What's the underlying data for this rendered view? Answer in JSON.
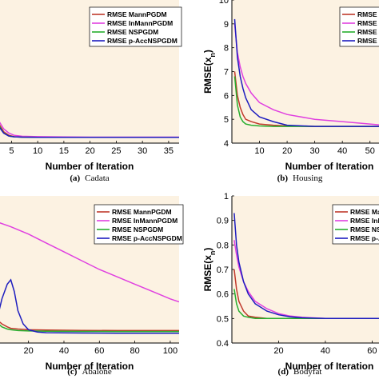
{
  "chart_data": [
    {
      "id": "cadata",
      "type": "line",
      "caption_tag": "(a)",
      "caption_name": "Cadata",
      "xlabel": "Number of Iteration",
      "ylabel": "",
      "xlim": [
        2.5,
        37
      ],
      "ylim": [
        0,
        1
      ],
      "xticks": [
        5,
        10,
        15,
        20,
        25,
        30,
        35
      ],
      "yticks": [],
      "legend_position": "top-right",
      "series": [
        {
          "name": "RMSE MannPGDM",
          "color": "#c0392b",
          "x": [
            2.5,
            3.5,
            4.5,
            5.5,
            7,
            10,
            15,
            20,
            30,
            37
          ],
          "y": [
            0.14,
            0.08,
            0.055,
            0.045,
            0.042,
            0.041,
            0.04,
            0.04,
            0.04,
            0.04
          ]
        },
        {
          "name": "RMSE InMannPGDM",
          "color": "#e040e0",
          "x": [
            2.5,
            3.5,
            4.5,
            5.5,
            7,
            10,
            15,
            20,
            30,
            37
          ],
          "y": [
            0.16,
            0.1,
            0.07,
            0.055,
            0.048,
            0.045,
            0.043,
            0.042,
            0.042,
            0.042
          ]
        },
        {
          "name": "RMSE NSPGDM",
          "color": "#27ae2e",
          "x": [
            2.5,
            3.5,
            4.5,
            5.5,
            7,
            10,
            15,
            20,
            30,
            37
          ],
          "y": [
            0.13,
            0.07,
            0.05,
            0.044,
            0.042,
            0.041,
            0.04,
            0.04,
            0.04,
            0.04
          ]
        },
        {
          "name": "RMSE p-AccNSPGDM",
          "color": "#1d1dbf",
          "x": [
            2.5,
            3.5,
            4.5,
            5.5,
            7,
            10,
            15,
            20,
            30,
            37
          ],
          "y": [
            0.12,
            0.07,
            0.05,
            0.044,
            0.042,
            0.041,
            0.04,
            0.04,
            0.04,
            0.04
          ]
        }
      ]
    },
    {
      "id": "housing",
      "type": "line",
      "caption_tag": "(b)",
      "caption_name": "Housing",
      "xlabel": "Number of Iteration",
      "ylabel": "RMSE(x",
      "ylabel_sub": "n",
      "ylabel_close": ")",
      "xlim": [
        0,
        55
      ],
      "ylim": [
        4,
        10
      ],
      "xticks": [
        10,
        20,
        30,
        40,
        50
      ],
      "xtick_labels": [
        "10",
        "20",
        "30",
        "40",
        "50"
      ],
      "yticks": [
        4,
        5,
        6,
        7,
        8,
        9,
        10
      ],
      "legend_position": "top-right",
      "series": [
        {
          "name": "RMSE MannPGDM",
          "color": "#c0392b",
          "x": [
            1,
            2,
            3,
            4,
            5,
            7,
            10,
            15,
            20,
            30,
            40,
            55
          ],
          "y": [
            7.0,
            6.0,
            5.5,
            5.2,
            5.0,
            4.9,
            4.8,
            4.75,
            4.72,
            4.7,
            4.7,
            4.7
          ]
        },
        {
          "name": "RMSE InMannPGDM",
          "color": "#e040e0",
          "x": [
            1,
            2,
            3,
            4,
            5,
            7,
            10,
            15,
            20,
            30,
            40,
            55
          ],
          "y": [
            9.0,
            7.8,
            7.2,
            6.8,
            6.5,
            6.1,
            5.7,
            5.4,
            5.2,
            5.0,
            4.9,
            4.75
          ]
        },
        {
          "name": "RMSE NSPGDM",
          "color": "#27ae2e",
          "x": [
            1,
            2,
            3,
            4,
            5,
            7,
            10,
            15,
            20,
            30,
            40,
            55
          ],
          "y": [
            6.8,
            5.6,
            5.1,
            4.9,
            4.8,
            4.75,
            4.72,
            4.7,
            4.7,
            4.7,
            4.7,
            4.7
          ]
        },
        {
          "name": "RMSE p-AccNSPGDM",
          "color": "#1d1dbf",
          "x": [
            1,
            2,
            3,
            4,
            5,
            7,
            10,
            15,
            20,
            30,
            40,
            55
          ],
          "y": [
            9.2,
            7.6,
            6.8,
            6.3,
            5.9,
            5.4,
            5.1,
            4.9,
            4.75,
            4.7,
            4.7,
            4.7
          ]
        }
      ]
    },
    {
      "id": "abalone",
      "type": "line",
      "caption_tag": "(c)",
      "caption_name": "Abalone",
      "xlabel": "Number of Iteration",
      "ylabel": "",
      "xlim": [
        3,
        105
      ],
      "ylim": [
        0,
        1
      ],
      "xticks": [
        20,
        40,
        60,
        80,
        100
      ],
      "yticks": [],
      "legend_position": "top-right",
      "series": [
        {
          "name": "RMSE MannPGDM",
          "color": "#c0392b",
          "x": [
            3,
            5,
            8,
            10,
            14,
            20,
            30,
            50,
            70,
            90,
            105
          ],
          "y": [
            0.15,
            0.13,
            0.11,
            0.1,
            0.095,
            0.09,
            0.088,
            0.086,
            0.085,
            0.085,
            0.085
          ]
        },
        {
          "name": "RMSE InMannPGDM",
          "color": "#e040e0",
          "x": [
            3,
            10,
            20,
            30,
            40,
            50,
            60,
            70,
            80,
            90,
            100,
            105
          ],
          "y": [
            0.82,
            0.79,
            0.74,
            0.68,
            0.62,
            0.56,
            0.5,
            0.45,
            0.4,
            0.35,
            0.3,
            0.28
          ]
        },
        {
          "name": "RMSE NSPGDM",
          "color": "#27ae2e",
          "x": [
            3,
            5,
            8,
            10,
            14,
            20,
            30,
            50,
            70,
            90,
            105
          ],
          "y": [
            0.13,
            0.11,
            0.095,
            0.09,
            0.085,
            0.082,
            0.08,
            0.079,
            0.078,
            0.078,
            0.078
          ]
        },
        {
          "name": "RMSE p-AccNSPGDM",
          "color": "#1d1dbf",
          "x": [
            3,
            5,
            8,
            10,
            12,
            14,
            17,
            20,
            25,
            30,
            50,
            70,
            90,
            105
          ],
          "y": [
            0.2,
            0.3,
            0.4,
            0.43,
            0.35,
            0.22,
            0.13,
            0.09,
            0.075,
            0.07,
            0.068,
            0.067,
            0.067,
            0.067
          ]
        }
      ]
    },
    {
      "id": "bodyfat",
      "type": "line",
      "caption_tag": "(d)",
      "caption_name": "Bodyfat",
      "xlabel": "Number of Iteration",
      "ylabel": "RMSE(x",
      "ylabel_sub": "n",
      "ylabel_close": ")",
      "xlim": [
        0,
        65
      ],
      "ylim": [
        0.4,
        1
      ],
      "xticks": [
        20,
        40,
        60
      ],
      "xtick_labels": [
        "20",
        "40",
        "60"
      ],
      "yticks": [
        0.4,
        0.5,
        0.6,
        0.7,
        0.8,
        0.9,
        1
      ],
      "ytick_labels": [
        "0.4",
        "0.5",
        "0.6",
        "0.7",
        "0.8",
        "0.9",
        "1"
      ],
      "legend_position": "top-right",
      "series": [
        {
          "name": "RMSE MannPGDM",
          "color": "#c0392b",
          "x": [
            1,
            2,
            3,
            5,
            7,
            10,
            15,
            20,
            30,
            40,
            65
          ],
          "y": [
            0.7,
            0.62,
            0.57,
            0.53,
            0.51,
            0.505,
            0.5,
            0.5,
            0.5,
            0.5,
            0.5
          ]
        },
        {
          "name": "RMSE InMannPGDM",
          "color": "#e040e0",
          "x": [
            1,
            2,
            3,
            5,
            7,
            10,
            15,
            20,
            25,
            30,
            40,
            50,
            65
          ],
          "y": [
            0.82,
            0.76,
            0.71,
            0.65,
            0.61,
            0.57,
            0.54,
            0.52,
            0.51,
            0.505,
            0.5,
            0.5,
            0.5
          ]
        },
        {
          "name": "RMSE NSPGDM",
          "color": "#27ae2e",
          "x": [
            1,
            2,
            3,
            5,
            7,
            10,
            15,
            20,
            30,
            40,
            65
          ],
          "y": [
            0.62,
            0.56,
            0.53,
            0.51,
            0.505,
            0.5,
            0.5,
            0.5,
            0.5,
            0.5,
            0.5
          ]
        },
        {
          "name": "RMSE p-AccNSPGDM",
          "color": "#1d1dbf",
          "x": [
            1,
            2,
            3,
            5,
            7,
            10,
            15,
            20,
            25,
            30,
            40,
            50,
            65
          ],
          "y": [
            0.93,
            0.8,
            0.73,
            0.65,
            0.6,
            0.56,
            0.53,
            0.515,
            0.507,
            0.503,
            0.5,
            0.5,
            0.5
          ]
        }
      ]
    }
  ]
}
